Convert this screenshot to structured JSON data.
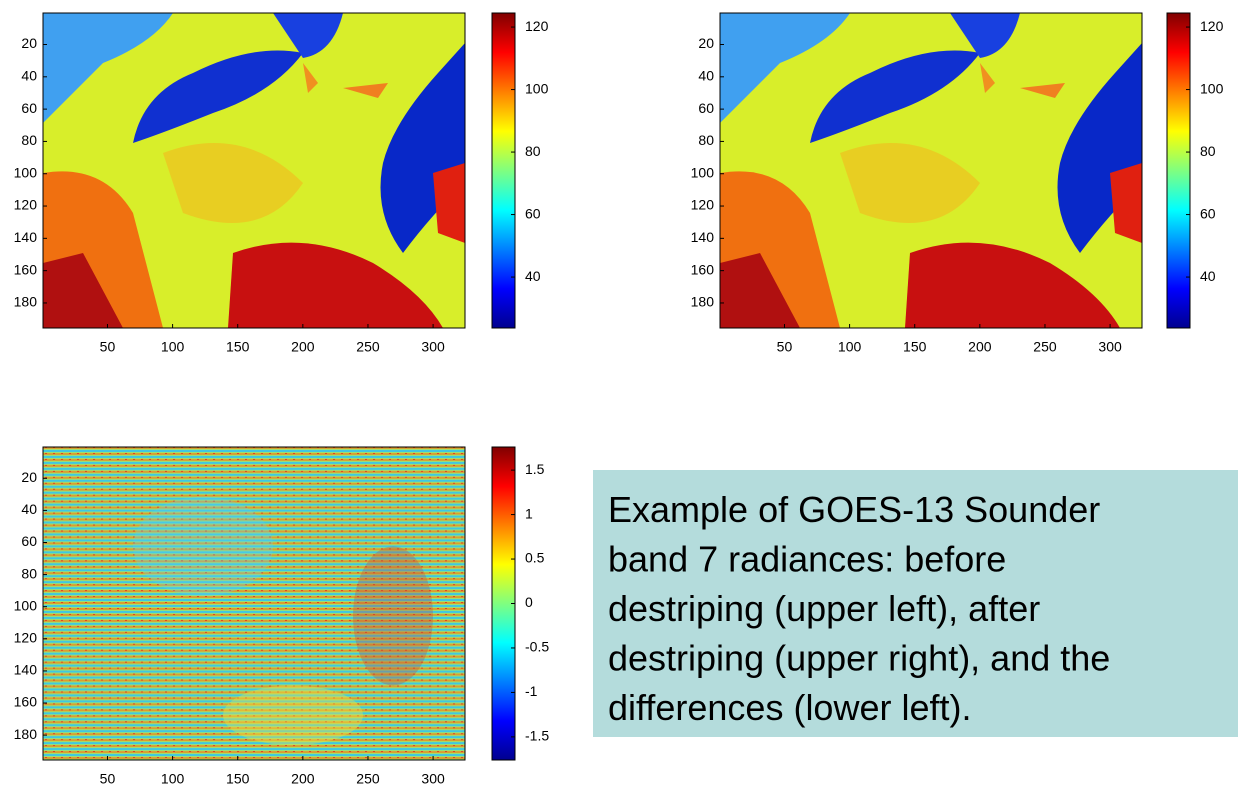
{
  "chart_data": [
    {
      "type": "heatmap",
      "xlim": [
        0.5,
        324.5
      ],
      "ylim": [
        0.5,
        195.5
      ],
      "y_reversed": true,
      "xticks": [
        50,
        100,
        150,
        200,
        250,
        300
      ],
      "yticks": [
        20,
        40,
        60,
        80,
        100,
        120,
        140,
        160,
        180
      ],
      "clim": [
        23.7,
        124.5
      ],
      "cticks": [
        40,
        60,
        80,
        100,
        120
      ]
    },
    {
      "type": "heatmap",
      "xlim": [
        0.5,
        324.5
      ],
      "ylim": [
        0.5,
        195.5
      ],
      "y_reversed": true,
      "xticks": [
        50,
        100,
        150,
        200,
        250,
        300
      ],
      "yticks": [
        20,
        40,
        60,
        80,
        100,
        120,
        140,
        160,
        180
      ],
      "clim": [
        23.7,
        124.5
      ],
      "cticks": [
        40,
        60,
        80,
        100,
        120
      ]
    },
    {
      "type": "heatmap",
      "xlim": [
        0.5,
        324.5
      ],
      "ylim": [
        0.5,
        195.5
      ],
      "y_reversed": true,
      "xticks": [
        50,
        100,
        150,
        200,
        250,
        300
      ],
      "yticks": [
        20,
        40,
        60,
        80,
        100,
        120,
        140,
        160,
        180
      ],
      "clim": [
        -1.76,
        1.76
      ],
      "cticks": [
        -1.5,
        -1,
        -0.5,
        0,
        0.5,
        1,
        1.5
      ]
    }
  ],
  "caption": {
    "lines": [
      "Example of GOES-13 Sounder",
      "band 7 radiances: before",
      "destriping (upper left), after",
      "destriping (upper right), and the",
      "differences (lower left)."
    ]
  }
}
